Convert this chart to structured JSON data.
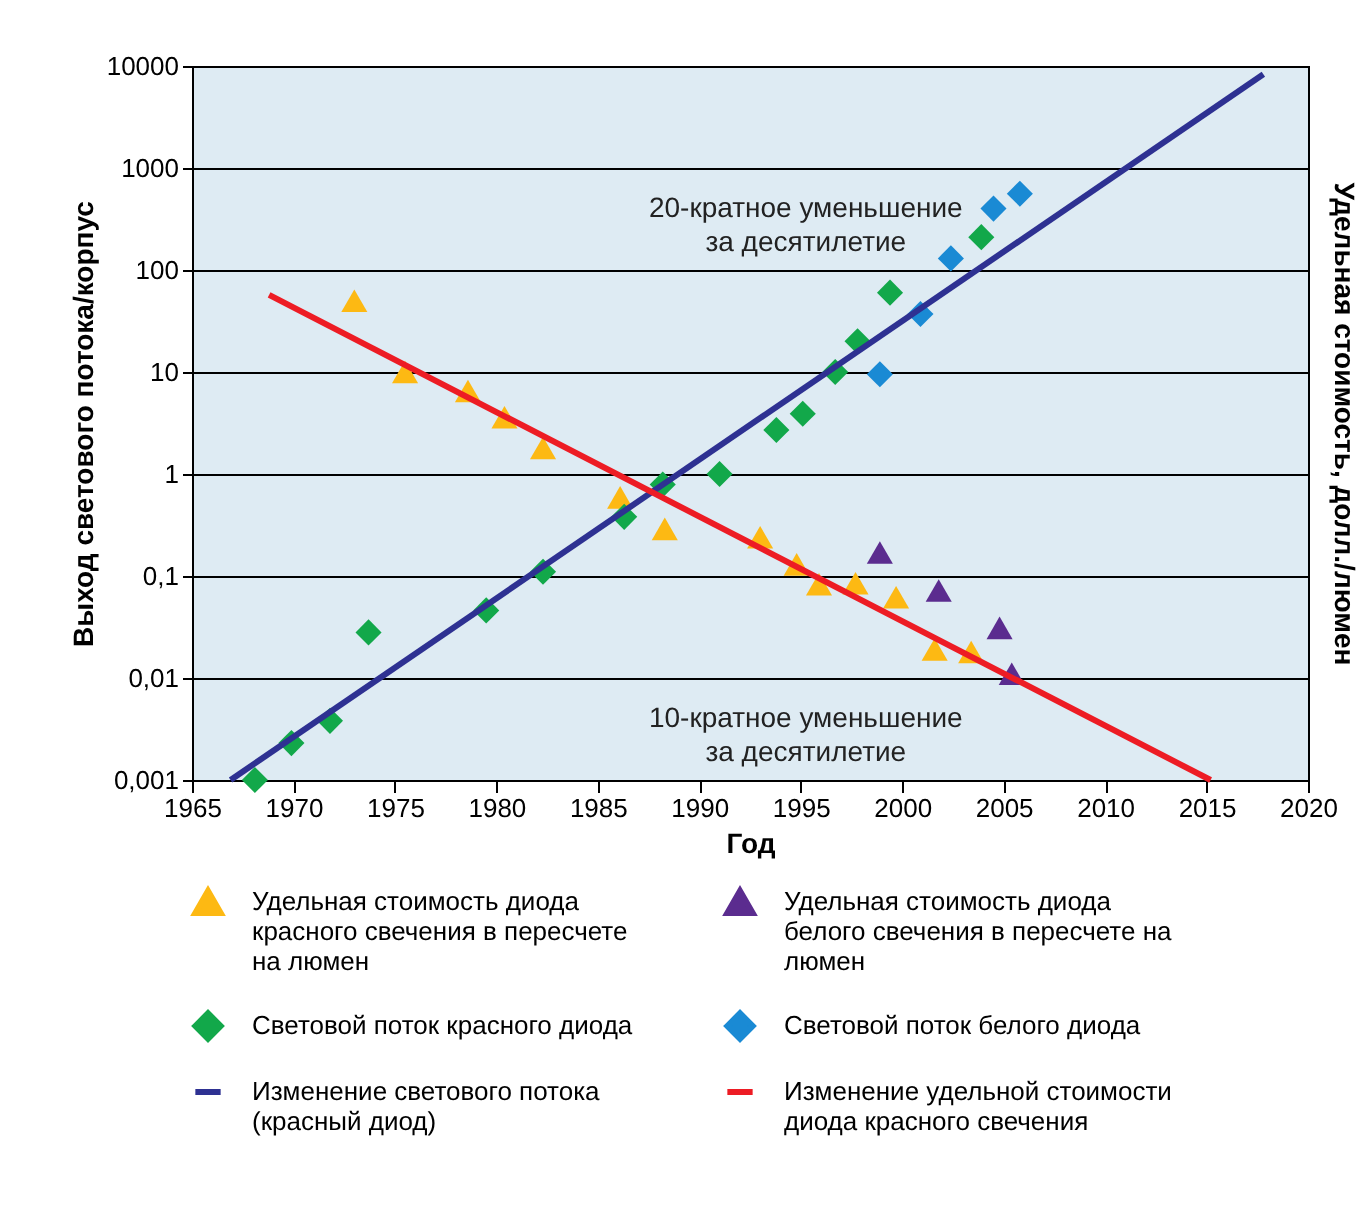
{
  "chart_data": {
    "type": "scatter",
    "xlabel": "Год",
    "ylabel": "Выход светового потока/корпус",
    "y2label": "Удельная стоимость, долл./люмен",
    "xlim": [
      1965,
      2020
    ],
    "xticks": [
      1965,
      1970,
      1975,
      1980,
      1985,
      1990,
      1995,
      2000,
      2005,
      2010,
      2015,
      2020
    ],
    "ylim": [
      0.001,
      10000
    ],
    "yticks": [
      {
        "value": 10000,
        "label": "10000"
      },
      {
        "value": 1000,
        "label": "1000"
      },
      {
        "value": 100,
        "label": "100"
      },
      {
        "value": 10,
        "label": "10"
      },
      {
        "value": 1,
        "label": "1"
      },
      {
        "value": 0.1,
        "label": "0,1"
      },
      {
        "value": 0.01,
        "label": "0,01"
      },
      {
        "value": 0.001,
        "label": "0,001"
      }
    ],
    "log": "y",
    "grid": "y",
    "legend": "bottom",
    "series": [
      {
        "name": "Удельная стоимость диода красного свечения в пересчете на люмен",
        "type": "scatter",
        "marker": "triangle",
        "color": "#fdb913",
        "x": [
          1973,
          1975.5,
          1978.6,
          1980.4,
          1982.3,
          1986.1,
          1988.3,
          1993,
          1994.8,
          1995.9,
          1997.7,
          1999.7,
          2001.6,
          2003.4
        ],
        "values": [
          50,
          10,
          6.5,
          3.6,
          1.8,
          0.59,
          0.29,
          0.24,
          0.13,
          0.083,
          0.085,
          0.062,
          0.019,
          0.018
        ]
      },
      {
        "name": "Удельная стоимость диода белого свечения в пересчете на люмен",
        "type": "scatter",
        "marker": "triangle",
        "color": "#5b2c8f",
        "x": [
          1998.9,
          2001.8,
          2004.8,
          2005.4
        ],
        "values": [
          0.17,
          0.072,
          0.031,
          0.011
        ]
      },
      {
        "name": "Световой поток красного диода",
        "type": "scatter",
        "marker": "diamond",
        "color": "#12a84a",
        "x": [
          1968.1,
          1969.9,
          1971.8,
          1973.7,
          1979.5,
          1982.3,
          1986.3,
          1988.2,
          1991,
          1993.8,
          1995.1,
          1996.7,
          1997.8,
          1999.4,
          2003.9
        ],
        "values": [
          0.001,
          0.0023,
          0.0038,
          0.028,
          0.046,
          0.11,
          0.38,
          0.79,
          1,
          2.7,
          3.9,
          10,
          20,
          60,
          210
        ]
      },
      {
        "name": "Световой поток белого диода",
        "type": "scatter",
        "marker": "diamond",
        "color": "#1a8ad4",
        "x": [
          1998.9,
          2000.9,
          2002.4,
          2004.5,
          2005.8
        ],
        "values": [
          9.5,
          37,
          130,
          400,
          560
        ]
      },
      {
        "name": "Изменение светового потока (красный диод)",
        "type": "line",
        "marker": "none",
        "color": "#2e3192",
        "x": [
          1966.9,
          2017.8
        ],
        "values": [
          0.001,
          8300
        ]
      },
      {
        "name": "Изменение удельной стоимости диода красного свечения",
        "type": "line",
        "marker": "none",
        "color": "#ed1c24",
        "x": [
          1968.8,
          2015.2
        ],
        "values": [
          57,
          0.001
        ]
      }
    ],
    "annotations": [
      "20-кратное уменьшение за десятилетие",
      "10-кратное уменьшение за десятилетие"
    ]
  }
}
